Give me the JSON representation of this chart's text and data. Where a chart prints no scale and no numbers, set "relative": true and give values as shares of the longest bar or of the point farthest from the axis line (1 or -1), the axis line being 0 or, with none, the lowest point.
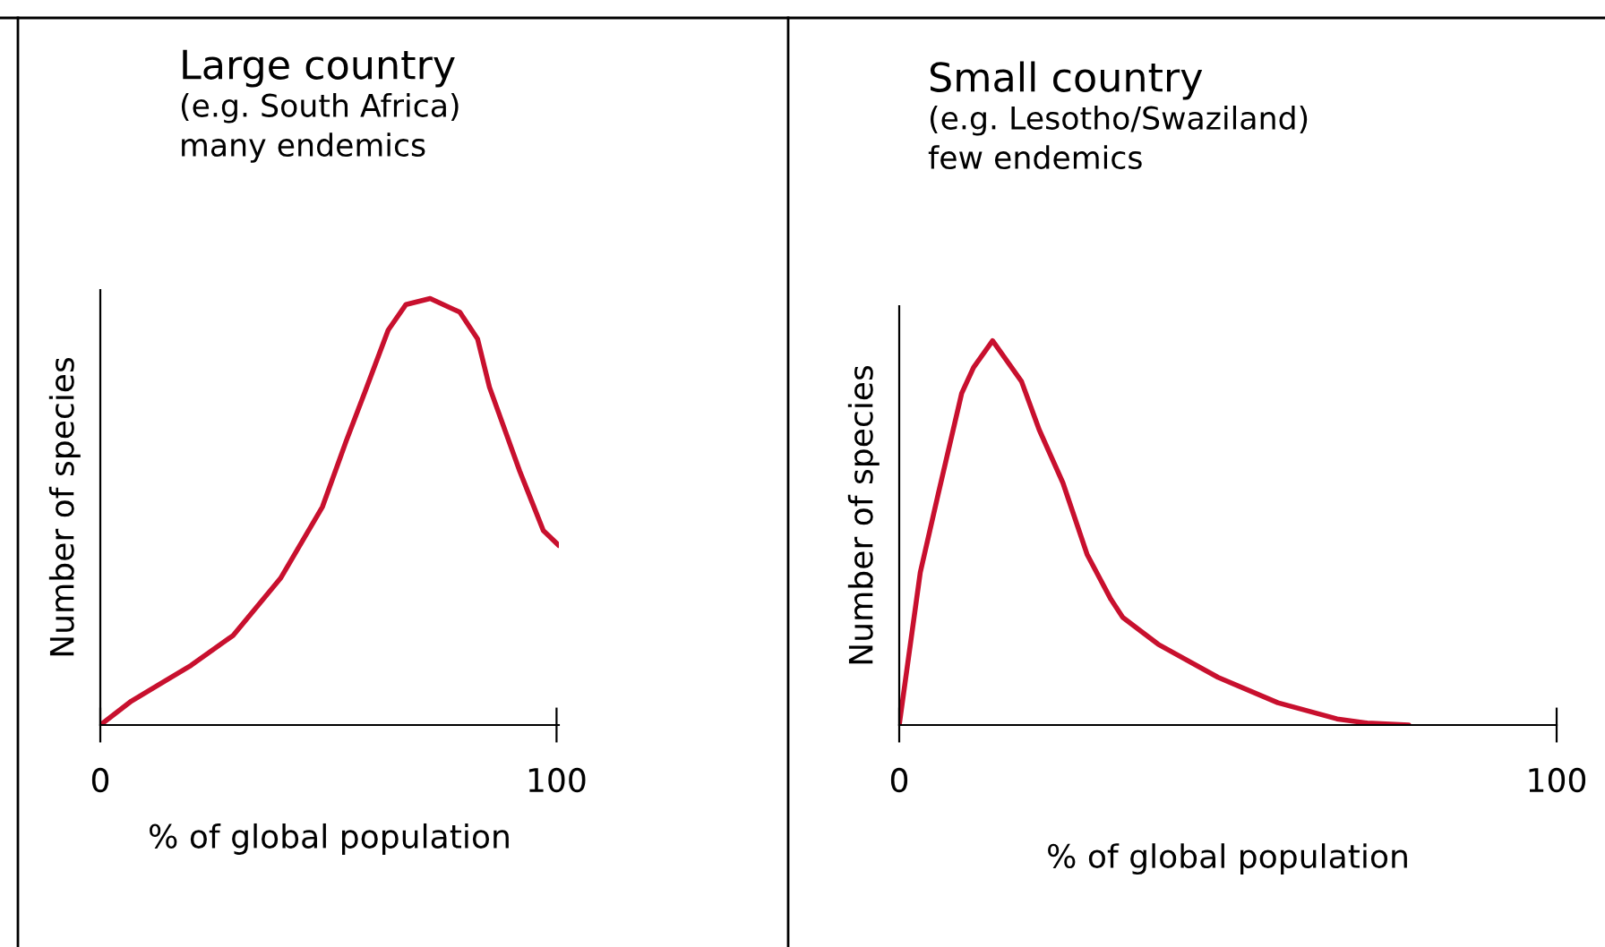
{
  "chart_data": [
    {
      "type": "line",
      "title": "Large country",
      "subtitle": "(e.g. South Africa)\nmany endemics",
      "xlabel": "% of global population",
      "ylabel": "Number of species",
      "relative": true,
      "xlim": [
        0,
        100.5
      ],
      "xticks": [
        0,
        100
      ],
      "grid": false,
      "legend": false,
      "series": [
        {
          "color": "#c8102e",
          "x": [
            0,
            6.8,
            19.9,
            29.1,
            39.5,
            48.7,
            53.9,
            57.9,
            63.1,
            67.0,
            72.3,
            78.8,
            82.7,
            85.3,
            91.9,
            94.5,
            97.1,
            100.5
          ],
          "values": [
            0,
            0.056,
            0.14,
            0.21,
            0.344,
            0.512,
            0.666,
            0.778,
            0.926,
            0.986,
            1.0,
            0.968,
            0.905,
            0.792,
            0.596,
            0.526,
            0.456,
            0.421
          ]
        }
      ]
    },
    {
      "type": "line",
      "title": "Small country",
      "subtitle": "(e.g. Lesotho/Swaziland)\nfew endemics",
      "xlabel": "% of global population",
      "ylabel": "Number of species",
      "relative": true,
      "xlim": [
        0,
        100
      ],
      "xticks": [
        0,
        100
      ],
      "grid": false,
      "legend": false,
      "series": [
        {
          "color": "#c8102e",
          "x": [
            0,
            3.2,
            5.9,
            9.5,
            11.3,
            14.2,
            18.6,
            21.3,
            24.9,
            28.6,
            32.2,
            34.0,
            39.4,
            48.5,
            57.6,
            66.6,
            71.2,
            77.5
          ],
          "values": [
            0,
            0.397,
            0.599,
            0.863,
            0.93,
            1.0,
            0.894,
            0.768,
            0.63,
            0.443,
            0.327,
            0.28,
            0.21,
            0.124,
            0.058,
            0.016,
            0.005,
            0
          ]
        }
      ]
    }
  ]
}
